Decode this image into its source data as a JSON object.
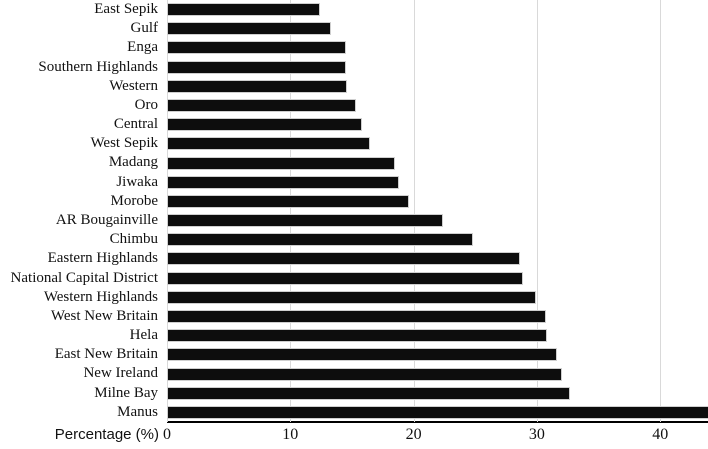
{
  "chart_data": {
    "type": "bar",
    "orientation": "horizontal",
    "xlabel": "Percentage (%)",
    "categories": [
      "East Sepik",
      "Gulf",
      "Enga",
      "Southern Highlands",
      "Western",
      "Oro",
      "Central",
      "West Sepik",
      "Madang",
      "Jiwaka",
      "Morobe",
      "AR Bougainville",
      "Chimbu",
      "Eastern Highlands",
      "National Capital District",
      "Western Highlands",
      "West New Britain",
      "Hela",
      "East New Britain",
      "New Ireland",
      "Milne Bay",
      "Manus"
    ],
    "values": [
      12.4,
      13.3,
      14.5,
      14.5,
      14.6,
      15.3,
      15.8,
      16.5,
      18.5,
      18.8,
      19.6,
      22.4,
      24.8,
      28.6,
      28.9,
      29.9,
      30.7,
      30.8,
      31.6,
      32.0,
      32.7,
      44.0
    ],
    "x_ticks": [
      0,
      10,
      20,
      30,
      40
    ],
    "xlim": [
      0,
      43.9
    ],
    "grid": "vertical",
    "legend": "none",
    "bar_color": "#0d0d0d",
    "gridline_color": "#d9d9d9",
    "axis_line_color": "#000000"
  }
}
